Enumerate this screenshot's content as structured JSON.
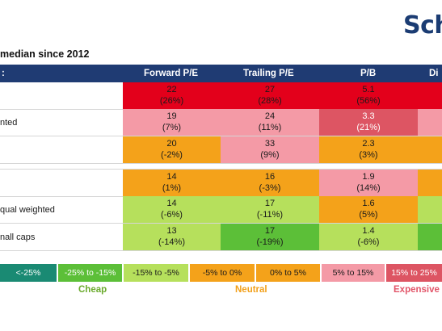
{
  "logo": {
    "text": "Sch"
  },
  "subtitle": "median since 2012",
  "chart_data": {
    "type": "table",
    "subtitle": "median since 2012",
    "header_first": ":",
    "columns": [
      "Forward P/E",
      "Trailing P/E",
      "P/B",
      "Di"
    ],
    "rows": [
      {
        "label": "",
        "values": [
          {
            "v": "22",
            "p": "(26%)",
            "color": "#e3001b",
            "dark": false
          },
          {
            "v": "27",
            "p": "(28%)",
            "color": "#e3001b",
            "dark": false
          },
          {
            "v": "5.1",
            "p": "(56%)",
            "color": "#e3001b",
            "dark": false
          },
          {
            "v": "",
            "p": "",
            "color": "#e3001b",
            "dark": false
          }
        ]
      },
      {
        "label": "nted",
        "values": [
          {
            "v": "19",
            "p": "(7%)",
            "color": "#f49aa6",
            "dark": false
          },
          {
            "v": "24",
            "p": "(11%)",
            "color": "#f49aa6",
            "dark": false
          },
          {
            "v": "3.3",
            "p": "(21%)",
            "color": "#dd5563",
            "dark": true
          },
          {
            "v": "",
            "p": "",
            "color": "#f49aa6",
            "dark": false
          }
        ]
      },
      {
        "label": "",
        "values": [
          {
            "v": "20",
            "p": "(-2%)",
            "color": "#f4a21a",
            "dark": false
          },
          {
            "v": "33",
            "p": "(9%)",
            "color": "#f49aa6",
            "dark": false
          },
          {
            "v": "2.3",
            "p": "(3%)",
            "color": "#f4a21a",
            "dark": false
          },
          {
            "v": "",
            "p": "",
            "color": "#f4a21a",
            "dark": false
          }
        ]
      },
      {
        "label": "",
        "values": [
          {
            "v": "14",
            "p": "(1%)",
            "color": "#f4a21a",
            "dark": false
          },
          {
            "v": "16",
            "p": "(-3%)",
            "color": "#f4a21a",
            "dark": false
          },
          {
            "v": "1.9",
            "p": "(14%)",
            "color": "#f49aa6",
            "dark": false
          },
          {
            "v": "",
            "p": "",
            "color": "#f4a21a",
            "dark": false
          }
        ]
      },
      {
        "label": "qual weighted",
        "values": [
          {
            "v": "14",
            "p": "(-6%)",
            "color": "#b6e05c",
            "dark": false
          },
          {
            "v": "17",
            "p": "(-11%)",
            "color": "#b6e05c",
            "dark": false
          },
          {
            "v": "1.6",
            "p": "(5%)",
            "color": "#f4a21a",
            "dark": false
          },
          {
            "v": "",
            "p": "",
            "color": "#b6e05c",
            "dark": false
          }
        ]
      },
      {
        "label": "nall caps",
        "values": [
          {
            "v": "13",
            "p": "(-14%)",
            "color": "#b6e05c",
            "dark": false
          },
          {
            "v": "17",
            "p": "(-19%)",
            "color": "#5cbf38",
            "dark": false
          },
          {
            "v": "1.4",
            "p": "(-6%)",
            "color": "#b6e05c",
            "dark": false
          },
          {
            "v": "",
            "p": "",
            "color": "#5cbf38",
            "dark": false
          }
        ]
      }
    ],
    "legend": [
      {
        "label": "<-25%",
        "color": "#1a8a73",
        "text_color": "#ffffff"
      },
      {
        "label": "-25% to -15%",
        "color": "#5cbf38",
        "text_color": "#ffffff"
      },
      {
        "label": "-15% to -5%",
        "color": "#b6e05c",
        "text_color": "#1a1a1a"
      },
      {
        "label": "-5% to 0%",
        "color": "#f4a21a",
        "text_color": "#1a1a1a"
      },
      {
        "label": "0% to 5%",
        "color": "#f4a21a",
        "text_color": "#1a1a1a"
      },
      {
        "label": "5% to 15%",
        "color": "#f49aa6",
        "text_color": "#1a1a1a"
      },
      {
        "label": "15% to 25%",
        "color": "#dd5563",
        "text_color": "#ffffff"
      }
    ],
    "groups": [
      {
        "label": "Cheap",
        "color": "#6aaa2c"
      },
      {
        "label": "Neutral",
        "color": "#f2a01a"
      },
      {
        "label": "Expensive",
        "color": "#e25569"
      }
    ]
  }
}
